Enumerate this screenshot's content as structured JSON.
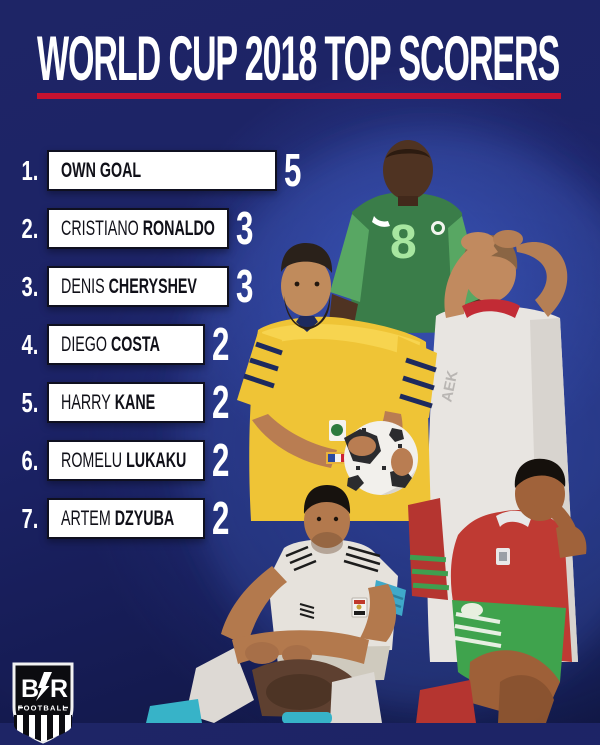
{
  "header": {
    "title": "WORLD CUP 2018 TOP SCORERS"
  },
  "list": {
    "rows": [
      {
        "rank": "1.",
        "name_regular": "",
        "name_bold": "OWN GOAL",
        "goals": 5
      },
      {
        "rank": "2.",
        "name_regular": "CRISTIANO",
        "name_bold": "RONALDO",
        "goals": 3
      },
      {
        "rank": "3.",
        "name_regular": "DENIS",
        "name_bold": "CHERYSHEV",
        "goals": 3
      },
      {
        "rank": "4.",
        "name_regular": "DIEGO",
        "name_bold": "COSTA",
        "goals": 2
      },
      {
        "rank": "5.",
        "name_regular": "HARRY",
        "name_bold": "KANE",
        "goals": 2
      },
      {
        "rank": "6.",
        "name_regular": "ROMELU",
        "name_bold": "LUKAKU",
        "goals": 2
      }
    ],
    "row8": {
      "rank": "7.",
      "name_regular": "ARTEM",
      "name_bold": "DZYUBA",
      "goals": 2
    }
  },
  "chart_data": {
    "type": "bar",
    "orientation": "horizontal",
    "title": "WORLD CUP 2018 TOP SCORERS",
    "categories": [
      "Own Goal",
      "Cristiano Ronaldo",
      "Denis Cheryshev",
      "Diego Costa",
      "Harry Kane",
      "Romelu Lukaku",
      "Artem Dzyuba"
    ],
    "values": [
      5,
      3,
      3,
      2,
      2,
      2,
      2
    ],
    "value_labels_shown": true,
    "rank_labels": [
      "1.",
      "2.",
      "3.",
      "4.",
      "5.",
      "6.",
      "7."
    ],
    "xlabel": "",
    "ylabel": "",
    "xlim": [
      0,
      5
    ],
    "grid": false,
    "legend": false,
    "bar_color": "#ffffff",
    "label_color": "#ffffff"
  },
  "logo": {
    "initial_left": "B",
    "initial_right": "R",
    "subtitle": "FOOTBALL"
  },
  "photos": {
    "figures": [
      "nigeria-player-green-jersey",
      "poland-player-hands-on-head",
      "australia-player-holding-ball",
      "morocco-player-crouching",
      "egypt-player-sitting"
    ],
    "nigeria_jersey_number": "8",
    "poland_jersey_partial_name": "AEK"
  },
  "colors": {
    "background_navy": "#1c2367",
    "accent_red": "#c51230",
    "bar_fill": "#ffffff",
    "bar_border": "#0f1020",
    "text_light": "#ffffff",
    "text_dark": "#101018"
  }
}
